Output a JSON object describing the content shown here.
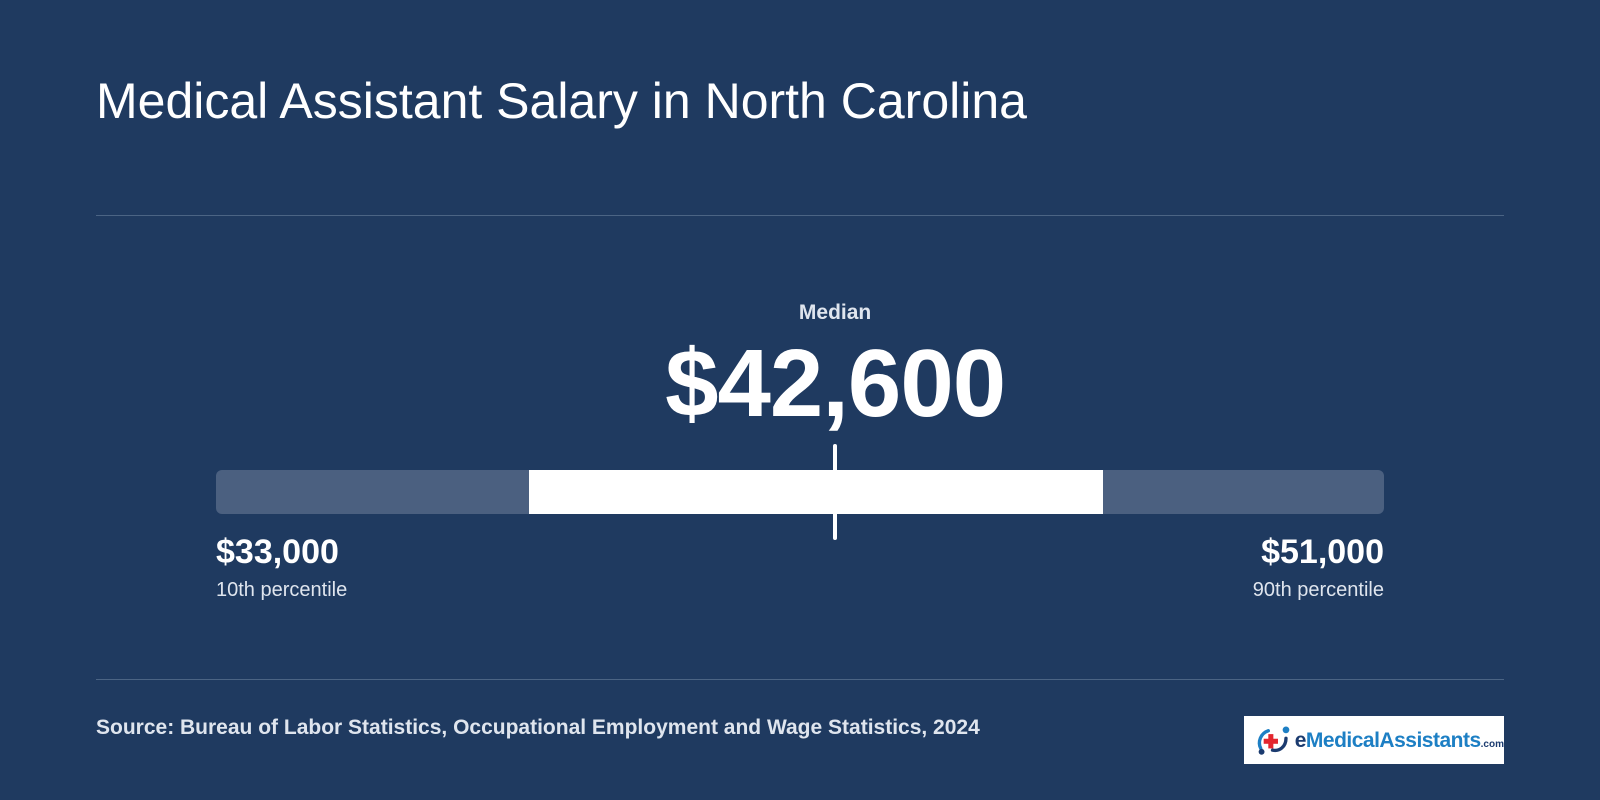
{
  "title": "Medical Assistant Salary in North Carolina",
  "chart_data": {
    "type": "range",
    "min": 33000,
    "max": 51000,
    "scale_min": 23200,
    "scale_max": 59800,
    "median": 42600,
    "median_label": "Median",
    "median_display": "$42,600",
    "low": {
      "value": 33000,
      "display": "$33,000",
      "label": "10th percentile"
    },
    "high": {
      "value": 51000,
      "display": "$51,000",
      "label": "90th percentile"
    }
  },
  "source": "Source: Bureau of Labor Statistics, Occupational Employment and Wage Statistics, 2024",
  "logo": {
    "prefix": "e",
    "main": "MedicalAssistants",
    "suffix": ".com"
  },
  "colors": {
    "background": "#1f3a60",
    "track": "#4b6080",
    "range": "#ffffff",
    "logo_blue": "#1d7fc4",
    "logo_navy": "#1b3b6f",
    "logo_red": "#e3262e"
  }
}
